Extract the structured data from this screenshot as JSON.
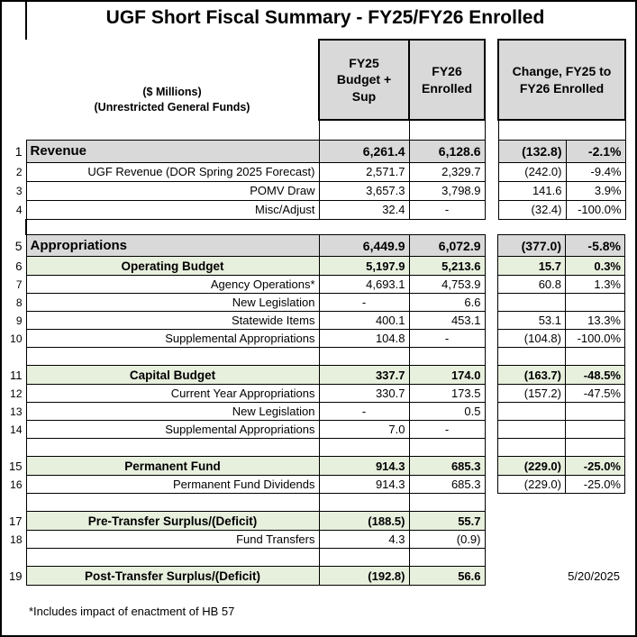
{
  "title": "UGF Short Fiscal Summary - FY25/FY26 Enrolled",
  "header": {
    "unit_line1": "($ Millions)",
    "unit_line2": "(Unrestricted General Funds)",
    "col_fy25": "FY25 Budget + Sup",
    "col_fy26": "FY26 Enrolled",
    "col_change": "Change, FY25 to FY26 Enrolled"
  },
  "table1": {
    "rows": [
      {
        "num": "1",
        "label": "Revenue",
        "style": "section",
        "fy25": "6,261.4",
        "fy26": "6,128.6",
        "change": "(132.8)",
        "pct": "-2.1%"
      },
      {
        "num": "2",
        "label": "UGF Revenue (DOR Spring 2025 Forecast)",
        "style": "detail",
        "fy25": "2,571.7",
        "fy26": "2,329.7",
        "change": "(242.0)",
        "pct": "-9.4%"
      },
      {
        "num": "3",
        "label": "POMV Draw",
        "style": "detail",
        "fy25": "3,657.3",
        "fy26": "3,798.9",
        "change": "141.6",
        "pct": "3.9%"
      },
      {
        "num": "4",
        "label": "Misc/Adjust",
        "style": "detail",
        "fy25": "32.4",
        "fy26": "-",
        "change": "(32.4)",
        "pct": "-100.0%"
      }
    ]
  },
  "table2": {
    "rows": [
      {
        "num": "5",
        "label": "Appropriations",
        "style": "section",
        "fy25": "6,449.9",
        "fy26": "6,072.9",
        "change": "(377.0)",
        "pct": "-5.8%"
      },
      {
        "num": "6",
        "label": "Operating Budget",
        "style": "green",
        "fy25": "5,197.9",
        "fy26": "5,213.6",
        "change": "15.7",
        "pct": "0.3%"
      },
      {
        "num": "7",
        "label": "Agency Operations*",
        "style": "detail",
        "fy25": "4,693.1",
        "fy26": "4,753.9",
        "change": "60.8",
        "pct": "1.3%"
      },
      {
        "num": "8",
        "label": "New Legislation",
        "style": "detail",
        "fy25": "-",
        "fy26": "6.6",
        "change": "",
        "pct": ""
      },
      {
        "num": "9",
        "label": "Statewide Items",
        "style": "detail",
        "fy25": "400.1",
        "fy26": "453.1",
        "change": "53.1",
        "pct": "13.3%"
      },
      {
        "num": "10",
        "label": "Supplemental Appropriations",
        "style": "detail",
        "fy25": "104.8",
        "fy26": "-",
        "change": "(104.8)",
        "pct": "-100.0%"
      },
      {
        "style": "blank"
      },
      {
        "num": "11",
        "label": "Capital Budget",
        "style": "green",
        "fy25": "337.7",
        "fy26": "174.0",
        "change": "(163.7)",
        "pct": "-48.5%"
      },
      {
        "num": "12",
        "label": "Current Year Appropriations",
        "style": "detail",
        "fy25": "330.7",
        "fy26": "173.5",
        "change": "(157.2)",
        "pct": "-47.5%"
      },
      {
        "num": "13",
        "label": "New Legislation",
        "style": "detail",
        "fy25": "-",
        "fy26": "0.5",
        "change": "",
        "pct": ""
      },
      {
        "num": "14",
        "label": "Supplemental Appropriations",
        "style": "detail",
        "fy25": "7.0",
        "fy26": "-",
        "change": "",
        "pct": ""
      },
      {
        "style": "blank"
      },
      {
        "num": "15",
        "label": "Permanent Fund",
        "style": "green",
        "fy25": "914.3",
        "fy26": "685.3",
        "change": "(229.0)",
        "pct": "-25.0%"
      },
      {
        "num": "16",
        "label": "Permanent Fund Dividends",
        "style": "detail",
        "fy25": "914.3",
        "fy26": "685.3",
        "change": "(229.0)",
        "pct": "-25.0%"
      },
      {
        "style": "blank",
        "no_change": true
      },
      {
        "num": "17",
        "label": "Pre-Transfer Surplus/(Deficit)",
        "style": "green",
        "fy25": "(188.5)",
        "fy26": "55.7",
        "no_change": true
      },
      {
        "num": "18",
        "label": "Fund Transfers",
        "style": "detail",
        "fy25": "4.3",
        "fy26": "(0.9)",
        "no_change": true
      },
      {
        "style": "blank",
        "no_change": true
      },
      {
        "num": "19",
        "label": "Post-Transfer Surplus/(Deficit)",
        "style": "green",
        "fy25": "(192.8)",
        "fy26": "56.6",
        "no_change": true
      }
    ]
  },
  "date": "5/20/2025",
  "footnote": "*Includes impact of enactment of HB 57",
  "colors": {
    "header_fill": "#d9d9d9",
    "section_fill": "#d9d9d9",
    "subtotal_fill": "#e7efdd",
    "border": "#000000",
    "text": "#000000"
  }
}
